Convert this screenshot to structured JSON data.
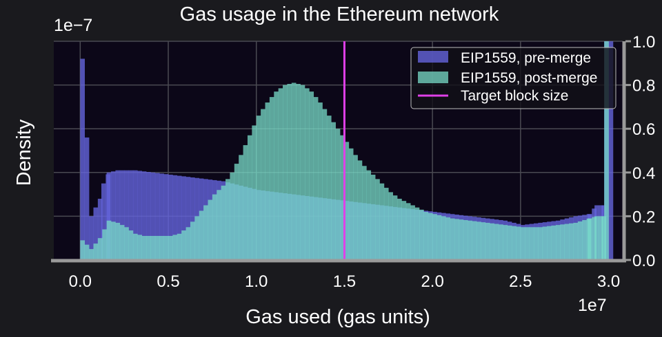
{
  "chart_data": {
    "type": "bar",
    "title": "Gas usage in the Ethereum network",
    "xlabel": "Gas used (gas units)",
    "ylabel": "Density",
    "x_scale_label": "1e7",
    "y_scale_label": "1e−7",
    "xlim": [
      -0.15,
      3.08
    ],
    "ylim": [
      0,
      1.0
    ],
    "x_ticks": [
      {
        "v": 0.0,
        "label": "0.0"
      },
      {
        "v": 0.5,
        "label": "0.5"
      },
      {
        "v": 1.0,
        "label": "1.0"
      },
      {
        "v": 1.5,
        "label": "1.5"
      },
      {
        "v": 2.0,
        "label": "2.0"
      },
      {
        "v": 2.5,
        "label": "2.5"
      },
      {
        "v": 3.0,
        "label": "3.0"
      }
    ],
    "y_ticks": [
      {
        "v": 0.0,
        "label": "0.0"
      },
      {
        "v": 0.2,
        "label": "0.2"
      },
      {
        "v": 0.4,
        "label": "0.4"
      },
      {
        "v": 0.6,
        "label": "0.6"
      },
      {
        "v": 0.8,
        "label": "0.8"
      },
      {
        "v": 1.0,
        "label": "1.0"
      }
    ],
    "grid": true,
    "legend_position": "top-right",
    "bin_width": 0.025,
    "series": [
      {
        "name": "EIP1559, pre-merge",
        "color": "#6464dc",
        "opacity": 0.8,
        "bins": [
          [
            0.0,
            0.92
          ],
          [
            0.05,
            0.2
          ],
          [
            0.1,
            0.28
          ],
          [
            0.12,
            0.35
          ],
          [
            0.15,
            0.4
          ],
          [
            0.2,
            0.41
          ],
          [
            0.3,
            0.41
          ],
          [
            0.4,
            0.4
          ],
          [
            0.5,
            0.39
          ],
          [
            0.6,
            0.38
          ],
          [
            0.7,
            0.37
          ],
          [
            0.8,
            0.36
          ],
          [
            0.9,
            0.34
          ],
          [
            1.0,
            0.32
          ],
          [
            1.1,
            0.31
          ],
          [
            1.2,
            0.3
          ],
          [
            1.3,
            0.29
          ],
          [
            1.4,
            0.28
          ],
          [
            1.5,
            0.27
          ],
          [
            1.6,
            0.26
          ],
          [
            1.7,
            0.25
          ],
          [
            1.8,
            0.24
          ],
          [
            1.9,
            0.23
          ],
          [
            2.0,
            0.22
          ],
          [
            2.1,
            0.21
          ],
          [
            2.2,
            0.2
          ],
          [
            2.3,
            0.19
          ],
          [
            2.4,
            0.18
          ],
          [
            2.5,
            0.16
          ],
          [
            2.6,
            0.17
          ],
          [
            2.7,
            0.18
          ],
          [
            2.8,
            0.2
          ],
          [
            2.88,
            0.21
          ],
          [
            2.92,
            0.25
          ],
          [
            2.96,
            0.25
          ],
          [
            2.975,
            1.1
          ],
          [
            3.0,
            1.1
          ],
          [
            3.025,
            0.0
          ]
        ]
      },
      {
        "name": "EIP1559, post-merge",
        "color": "#78dcc8",
        "opacity": 0.75,
        "bins": [
          [
            0.0,
            0.09
          ],
          [
            0.05,
            0.05
          ],
          [
            0.1,
            0.1
          ],
          [
            0.15,
            0.18
          ],
          [
            0.2,
            0.17
          ],
          [
            0.25,
            0.15
          ],
          [
            0.3,
            0.12
          ],
          [
            0.35,
            0.11
          ],
          [
            0.4,
            0.11
          ],
          [
            0.45,
            0.11
          ],
          [
            0.5,
            0.11
          ],
          [
            0.55,
            0.12
          ],
          [
            0.6,
            0.15
          ],
          [
            0.65,
            0.2
          ],
          [
            0.7,
            0.25
          ],
          [
            0.75,
            0.3
          ],
          [
            0.8,
            0.34
          ],
          [
            0.85,
            0.4
          ],
          [
            0.9,
            0.48
          ],
          [
            0.95,
            0.57
          ],
          [
            1.0,
            0.66
          ],
          [
            1.05,
            0.72
          ],
          [
            1.1,
            0.77
          ],
          [
            1.15,
            0.8
          ],
          [
            1.2,
            0.81
          ],
          [
            1.25,
            0.8
          ],
          [
            1.3,
            0.77
          ],
          [
            1.35,
            0.72
          ],
          [
            1.4,
            0.66
          ],
          [
            1.45,
            0.6
          ],
          [
            1.5,
            0.54
          ],
          [
            1.55,
            0.48
          ],
          [
            1.6,
            0.43
          ],
          [
            1.65,
            0.39
          ],
          [
            1.7,
            0.35
          ],
          [
            1.75,
            0.31
          ],
          [
            1.8,
            0.28
          ],
          [
            1.85,
            0.26
          ],
          [
            1.9,
            0.24
          ],
          [
            1.95,
            0.22
          ],
          [
            2.0,
            0.21
          ],
          [
            2.1,
            0.19
          ],
          [
            2.2,
            0.18
          ],
          [
            2.3,
            0.17
          ],
          [
            2.4,
            0.16
          ],
          [
            2.5,
            0.15
          ],
          [
            2.6,
            0.15
          ],
          [
            2.7,
            0.16
          ],
          [
            2.8,
            0.17
          ],
          [
            2.88,
            0.19
          ],
          [
            2.92,
            0.2
          ],
          [
            2.96,
            0.2
          ],
          [
            2.975,
            1.1
          ],
          [
            3.0,
            0.0
          ]
        ]
      }
    ],
    "vline": {
      "name": "Target block size",
      "x": 1.5,
      "color": "#e040e8"
    }
  }
}
